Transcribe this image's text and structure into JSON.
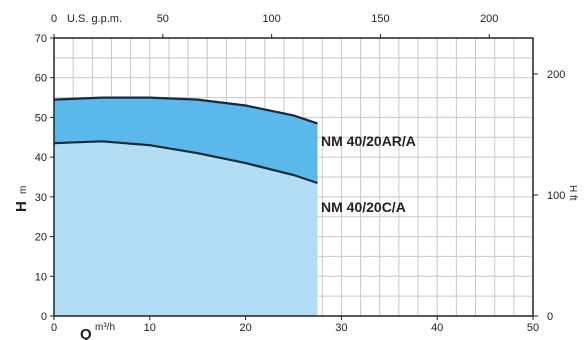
{
  "chart_data": {
    "type": "area",
    "x_label": "Q",
    "x_unit": "m³/h",
    "x_ticks": [
      0,
      10,
      20,
      30,
      40,
      50
    ],
    "x_range": [
      0,
      50
    ],
    "top_axis": {
      "label": "U.S. g.p.m.",
      "ticks": [
        0,
        50,
        100,
        150,
        200
      ],
      "range": [
        0,
        220.1
      ]
    },
    "y_label": "H",
    "y_unit": "m",
    "y_ticks": [
      0,
      10,
      20,
      30,
      40,
      50,
      60,
      70
    ],
    "y_range": [
      0,
      70
    ],
    "right_axis": {
      "label": "H ft",
      "ticks": [
        0,
        100,
        200
      ],
      "range": [
        0,
        229.7
      ]
    },
    "grid": true,
    "series": [
      {
        "name": "NM 40/20AR/A",
        "color": "#5ab8ea",
        "x": [
          0,
          5,
          10,
          15,
          20,
          25,
          27.5
        ],
        "y": [
          54.5,
          55.0,
          55.0,
          54.5,
          53.0,
          50.5,
          48.5
        ]
      },
      {
        "name": "NM 40/20C/A",
        "color": "#b3dcf5",
        "x": [
          0,
          5,
          10,
          15,
          20,
          25,
          27.5
        ],
        "y": [
          43.5,
          44.0,
          43.0,
          41.0,
          38.5,
          35.5,
          33.5
        ]
      }
    ],
    "curve_color": "#1b2a3a"
  }
}
